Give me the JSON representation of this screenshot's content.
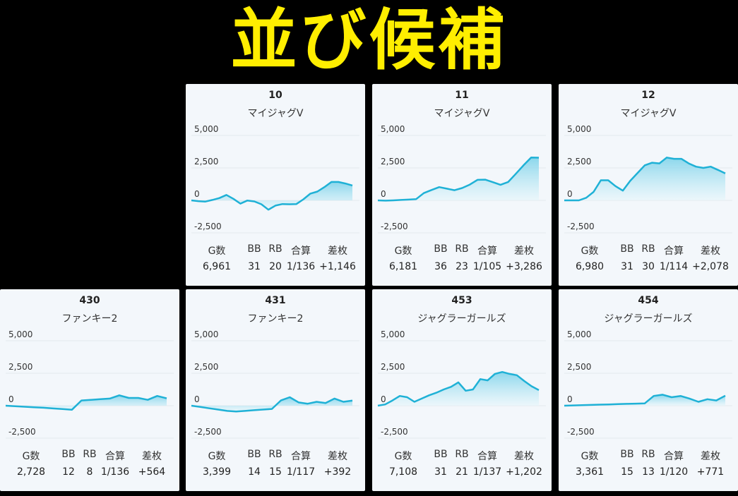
{
  "title": "並び候補",
  "stat_headers": [
    "G数",
    "BB",
    "RB",
    "合算",
    "差枚"
  ],
  "y_ticks": [
    "5,000",
    "2,500",
    "0",
    "-2,500"
  ],
  "colors": {
    "line": "#1fb1d6",
    "fill_top": "#7fd3ea",
    "fill_bottom": "#e6f6fb",
    "card": "#f3f7fb"
  },
  "cards": [
    {
      "number": "10",
      "machine": "マイジャグV",
      "stats": [
        "6,961",
        "31",
        "20",
        "1/136",
        "+1,146"
      ],
      "chart_data": {
        "type": "area",
        "ylim": [
          -2500,
          5000
        ],
        "values": [
          0,
          -60,
          -90,
          30,
          180,
          420,
          120,
          -250,
          -10,
          -80,
          -300,
          -720,
          -400,
          -280,
          -300,
          -280,
          80,
          520,
          680,
          1020,
          1420,
          1420,
          1300,
          1146
        ]
      }
    },
    {
      "number": "11",
      "machine": "マイジャグV",
      "stats": [
        "6,181",
        "36",
        "23",
        "1/105",
        "+3,286"
      ],
      "chart_data": {
        "type": "area",
        "ylim": [
          -2500,
          5000
        ],
        "values": [
          0,
          -20,
          0,
          30,
          60,
          100,
          560,
          800,
          1020,
          900,
          780,
          950,
          1220,
          1580,
          1600,
          1400,
          1200,
          1420,
          2050,
          2700,
          3300,
          3286
        ]
      }
    },
    {
      "number": "12",
      "machine": "マイジャグV",
      "stats": [
        "6,980",
        "31",
        "30",
        "1/114",
        "+2,078"
      ],
      "chart_data": {
        "type": "area",
        "ylim": [
          -2500,
          5000
        ],
        "values": [
          0,
          0,
          0,
          200,
          650,
          1550,
          1550,
          1100,
          750,
          1500,
          2100,
          2700,
          2900,
          2850,
          3300,
          3200,
          3200,
          2850,
          2600,
          2500,
          2600,
          2350,
          2078
        ]
      }
    },
    {
      "number": "430",
      "machine": "ファンキー2",
      "stats": [
        "2,728",
        "12",
        "8",
        "1/136",
        "+564"
      ],
      "chart_data": {
        "type": "area",
        "ylim": [
          -2500,
          5000
        ],
        "values": [
          0,
          -40,
          -80,
          -120,
          -160,
          -210,
          -260,
          -310,
          400,
          450,
          500,
          550,
          800,
          600,
          600,
          450,
          750,
          564
        ]
      }
    },
    {
      "number": "431",
      "machine": "ファンキー2",
      "stats": [
        "3,399",
        "14",
        "15",
        "1/117",
        "+392"
      ],
      "chart_data": {
        "type": "area",
        "ylim": [
          -2500,
          5000
        ],
        "values": [
          0,
          -100,
          -200,
          -300,
          -400,
          -450,
          -400,
          -350,
          -300,
          -250,
          400,
          650,
          250,
          150,
          300,
          200,
          550,
          300,
          392
        ]
      }
    },
    {
      "number": "453",
      "machine": "ジャグラーガールズ",
      "stats": [
        "7,108",
        "31",
        "21",
        "1/137",
        "+1,202"
      ],
      "chart_data": {
        "type": "area",
        "ylim": [
          -2500,
          5000
        ],
        "values": [
          0,
          100,
          400,
          750,
          650,
          300,
          550,
          800,
          1000,
          1250,
          1450,
          1800,
          1150,
          1250,
          2050,
          1950,
          2450,
          2600,
          2450,
          2350,
          1900,
          1500,
          1202
        ]
      }
    },
    {
      "number": "454",
      "machine": "ジャグラーガールズ",
      "stats": [
        "3,361",
        "15",
        "13",
        "1/120",
        "+771"
      ],
      "chart_data": {
        "type": "area",
        "ylim": [
          -2500,
          5000
        ],
        "values": [
          0,
          20,
          40,
          60,
          80,
          100,
          120,
          140,
          160,
          180,
          750,
          850,
          650,
          750,
          550,
          300,
          500,
          400,
          771
        ]
      }
    }
  ]
}
